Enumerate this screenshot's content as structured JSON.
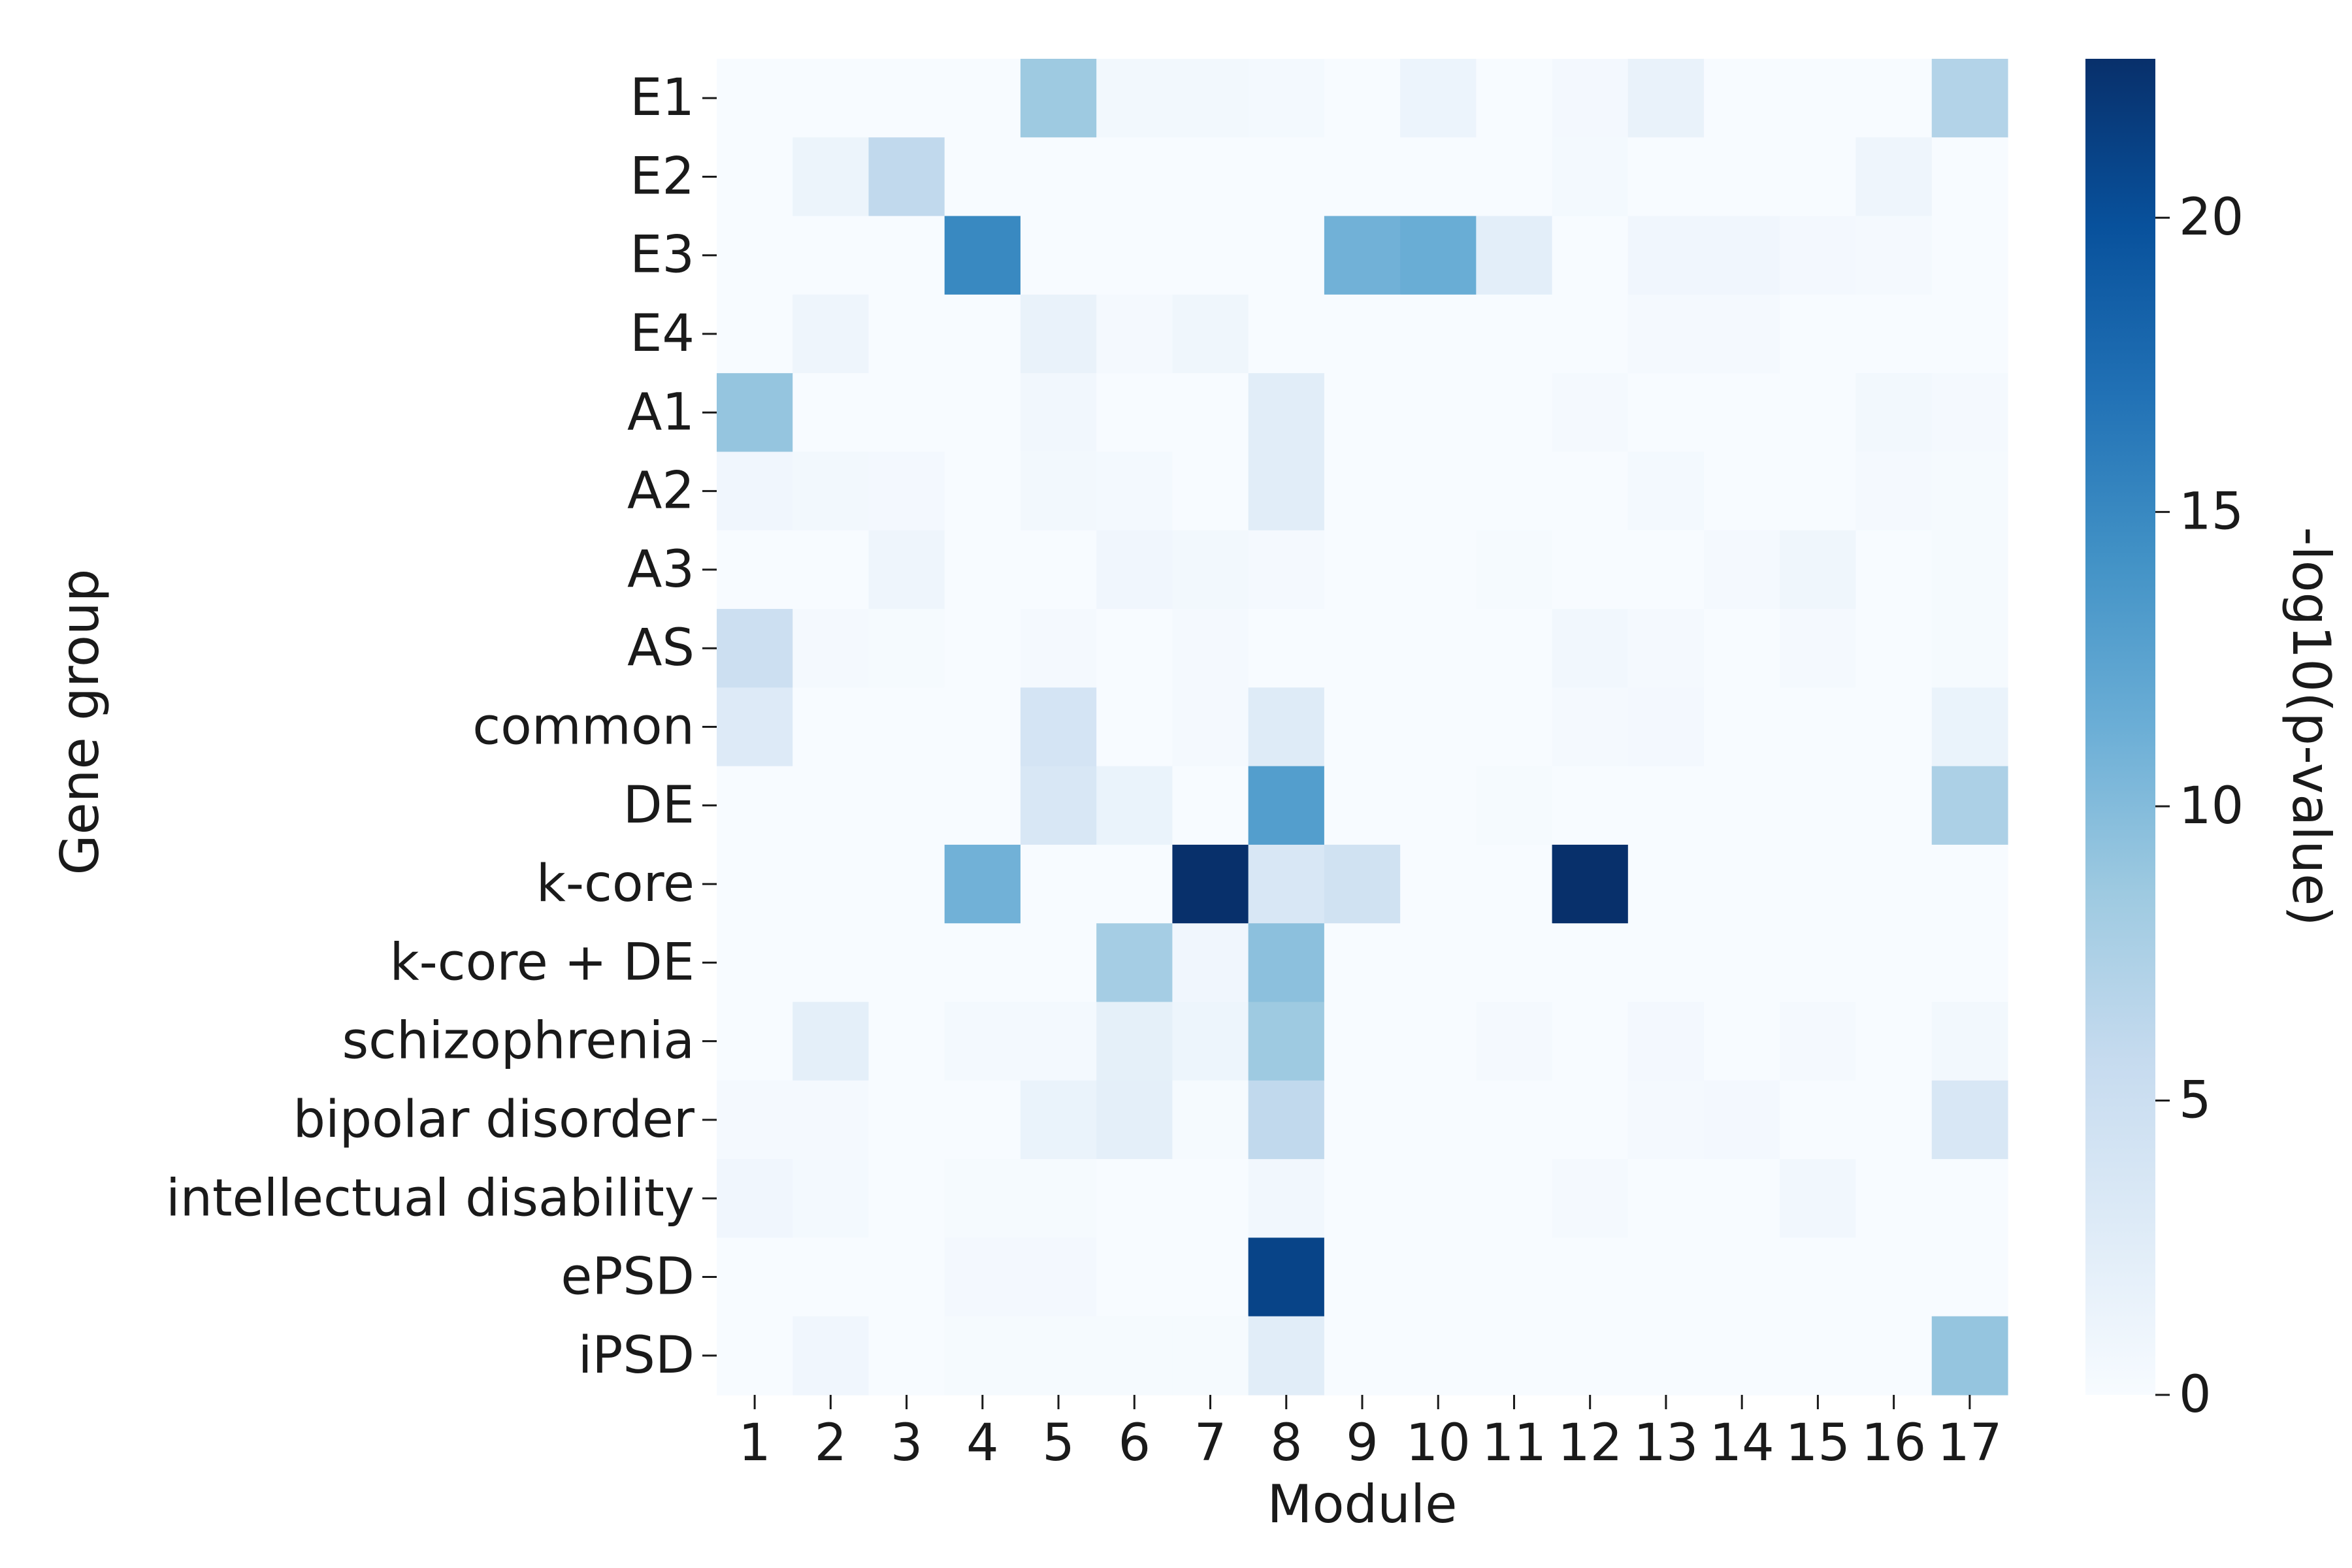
{
  "chart_data": {
    "type": "heatmap",
    "title": "",
    "xlabel": "Module",
    "ylabel": "Gene group",
    "colorbar_label": "-log10(p-value)",
    "colormap": "Blues",
    "colormap_stops": [
      "#f7fbff",
      "#deebf7",
      "#c6dbef",
      "#9ecae1",
      "#6baed6",
      "#4292c6",
      "#2171b5",
      "#08519c",
      "#08306b"
    ],
    "vmin": 0,
    "vmax": 22.7,
    "colorbar_ticks": [
      0,
      5,
      10,
      15,
      20
    ],
    "x_categories": [
      "1",
      "2",
      "3",
      "4",
      "5",
      "6",
      "7",
      "8",
      "9",
      "10",
      "11",
      "12",
      "13",
      "14",
      "15",
      "16",
      "17"
    ],
    "y_categories": [
      "E1",
      "E2",
      "E3",
      "E4",
      "A1",
      "A2",
      "A3",
      "AS",
      "common",
      "DE",
      "k-core",
      "k-core + DE",
      "schizophrenia",
      "bipolar disorder",
      "intellectual disability",
      "ePSD",
      "iPSD"
    ],
    "values": [
      [
        0,
        0,
        0,
        0,
        8.5,
        0.6,
        0.6,
        0.4,
        0,
        1.2,
        0,
        0.5,
        1.6,
        0,
        0,
        0,
        7
      ],
      [
        0,
        1.3,
        6,
        0,
        0,
        0,
        0,
        0,
        0,
        0,
        0,
        0.4,
        0,
        0,
        0,
        1,
        0
      ],
      [
        0,
        0,
        0,
        15,
        0,
        0,
        0,
        0,
        11,
        11.5,
        2.3,
        0,
        0.8,
        0.8,
        0.5,
        0.3,
        0
      ],
      [
        0,
        1,
        0,
        0,
        1.6,
        0.3,
        0.9,
        0,
        0,
        0,
        0,
        0,
        0.3,
        0.3,
        0,
        0,
        0
      ],
      [
        9,
        0,
        0,
        0,
        0.7,
        0,
        0,
        2.5,
        0,
        0,
        0,
        0.3,
        0,
        0,
        0,
        0.6,
        0.3
      ],
      [
        0.8,
        0.6,
        0.5,
        0,
        0.6,
        0.4,
        0,
        2.5,
        0,
        0,
        0,
        0,
        0.4,
        0,
        0,
        0.3,
        0.2
      ],
      [
        0,
        0,
        1,
        0,
        0,
        0.8,
        0.6,
        0.3,
        0,
        0,
        0.2,
        0,
        0,
        0.3,
        0.9,
        0,
        0.2
      ],
      [
        5,
        0.3,
        0.2,
        0,
        0.3,
        0,
        0.3,
        0,
        0,
        0,
        0,
        0.7,
        0.3,
        0,
        0.3,
        0,
        0.2
      ],
      [
        3,
        0,
        0,
        0,
        4,
        0,
        0.3,
        2.8,
        0,
        0,
        0,
        0.3,
        0.5,
        0,
        0,
        0,
        1.5
      ],
      [
        0,
        0,
        0,
        0,
        3.5,
        1.5,
        0,
        13,
        0,
        0,
        0.2,
        0,
        0,
        0,
        0,
        0,
        7.5
      ],
      [
        0,
        0,
        0,
        11,
        0,
        0,
        22.7,
        3.5,
        4.5,
        0,
        0,
        22.7,
        0,
        0,
        0,
        0,
        0
      ],
      [
        0,
        0,
        0,
        0,
        0,
        8,
        0.8,
        9.5,
        0,
        0,
        0,
        0,
        0,
        0,
        0,
        0,
        0
      ],
      [
        0,
        2.2,
        0,
        0.4,
        0.4,
        2,
        1.1,
        8.5,
        0,
        0,
        0.3,
        0,
        0.5,
        0,
        0.3,
        0,
        0.6
      ],
      [
        0.3,
        0.3,
        0,
        0,
        1.5,
        2.2,
        0.2,
        6,
        0,
        0,
        0,
        0,
        0.3,
        0.5,
        0,
        0,
        3.5
      ],
      [
        0.8,
        0.4,
        0,
        0.2,
        0.2,
        0,
        0,
        0.7,
        0,
        0,
        0,
        0.3,
        0,
        0,
        0.7,
        0,
        0
      ],
      [
        0,
        0,
        0,
        0.5,
        0.5,
        0,
        0,
        21,
        0,
        0,
        0,
        0,
        0,
        0,
        0,
        0,
        0
      ],
      [
        0,
        0.8,
        0,
        0.2,
        0.2,
        0.2,
        0.2,
        2.5,
        0,
        0,
        0,
        0,
        0,
        0,
        0,
        0,
        9
      ]
    ]
  }
}
